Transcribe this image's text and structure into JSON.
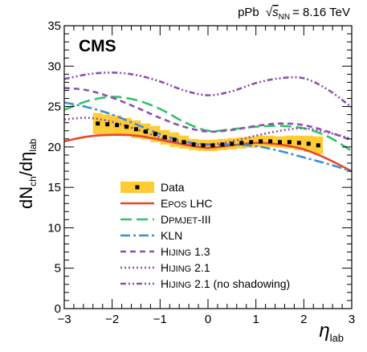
{
  "chart_data": {
    "type": "line",
    "energy_label": "pPb",
    "energy_value": "= 8.16 TeV",
    "experiment": "CMS",
    "xlabel": "η",
    "xlabel_sub": "lab",
    "ylabel": "dN",
    "ylabel_sub": "ch",
    "xlim": [
      -3,
      3
    ],
    "ylim": [
      0,
      35
    ],
    "x_ticks": [
      -3,
      -2,
      -1,
      0,
      1,
      2,
      3
    ],
    "y_ticks": [
      0,
      5,
      10,
      15,
      20,
      25,
      30,
      35
    ],
    "legend_position": "center-left",
    "data": {
      "name": "Data",
      "x": [
        -2.3,
        -2.1,
        -1.9,
        -1.7,
        -1.5,
        -1.3,
        -1.1,
        -0.9,
        -0.7,
        -0.5,
        -0.3,
        -0.1,
        0.1,
        0.3,
        0.5,
        0.7,
        0.9,
        1.1,
        1.3,
        1.5,
        1.7,
        1.9,
        2.1,
        2.3
      ],
      "y": [
        22.9,
        22.8,
        22.7,
        22.5,
        22.2,
        21.9,
        21.6,
        21.2,
        20.9,
        20.6,
        20.3,
        20.2,
        20.2,
        20.3,
        20.4,
        20.5,
        20.6,
        20.7,
        20.7,
        20.6,
        20.6,
        20.5,
        20.4,
        20.2
      ],
      "syst": [
        1.3,
        1.2,
        1.2,
        1.1,
        1.1,
        1.0,
        1.0,
        0.9,
        0.9,
        0.8,
        0.7,
        0.7,
        0.7,
        0.7,
        0.7,
        0.7,
        0.7,
        0.7,
        0.7,
        0.7,
        0.8,
        0.9,
        1.0,
        1.1
      ],
      "color": "#ffcc33"
    },
    "series": [
      {
        "name": "EPOS LHC",
        "name_main": "E",
        "name_sc": "POS",
        "name_rest": " LHC",
        "color": "#e8472b",
        "dash": "none",
        "x": [
          -3,
          -2.5,
          -2,
          -1.5,
          -1,
          -0.5,
          0,
          0.5,
          1,
          1.5,
          2,
          2.5,
          3
        ],
        "y": [
          20.7,
          21.3,
          21.5,
          21.4,
          20.9,
          20.3,
          19.9,
          20.2,
          20.5,
          20.3,
          19.7,
          18.5,
          17.0
        ]
      },
      {
        "name": "DPMJET-III",
        "name_main": "D",
        "name_sc": "PMJET",
        "name_rest": "-III",
        "color": "#33c36a",
        "dash": "14 6",
        "x": [
          -3,
          -2.5,
          -2,
          -1.5,
          -1,
          -0.5,
          0,
          0.5,
          1,
          1.5,
          2,
          2.5,
          3
        ],
        "y": [
          24.6,
          25.7,
          26.2,
          25.8,
          24.7,
          23.1,
          22.0,
          22.2,
          22.5,
          22.6,
          22.3,
          21.3,
          19.5
        ]
      },
      {
        "name": "KLN",
        "name_main": "KLN",
        "name_sc": "",
        "name_rest": "",
        "color": "#3c8fd6",
        "dash": "12 4 3 4",
        "x": [
          -3,
          -2.5,
          -2,
          -1.5,
          -1,
          -0.5,
          0,
          0.5,
          1,
          1.5,
          2,
          2.5,
          3
        ],
        "y": [
          25.5,
          24.9,
          24.0,
          22.8,
          21.6,
          20.7,
          20.3,
          20.3,
          20.1,
          19.5,
          18.7,
          17.9,
          17.0
        ]
      },
      {
        "name": "HIJING 1.3",
        "name_main": "H",
        "name_sc": "IJING",
        "name_rest": " 1.3",
        "color": "#8e4fb0",
        "dash": "7 5",
        "x": [
          -3,
          -2.5,
          -2,
          -1.5,
          -1,
          -0.5,
          0,
          0.5,
          1,
          1.5,
          2,
          2.5,
          3
        ],
        "y": [
          27.3,
          27.0,
          26.1,
          24.9,
          23.6,
          22.5,
          21.9,
          22.1,
          22.6,
          22.9,
          22.7,
          21.9,
          20.8
        ]
      },
      {
        "name": "HIJING 2.1",
        "name_main": "H",
        "name_sc": "IJING",
        "name_rest": " 2.1",
        "color": "#8e4fb0",
        "dash": "2 3",
        "x": [
          -3,
          -2.5,
          -2,
          -1.5,
          -1,
          -0.5,
          0,
          0.5,
          1,
          1.5,
          2,
          2.5,
          3
        ],
        "y": [
          23.4,
          23.6,
          23.1,
          22.2,
          21.2,
          20.5,
          20.3,
          20.7,
          21.4,
          22.0,
          22.3,
          21.8,
          21.0
        ]
      },
      {
        "name": "HIJING 2.1 (no shadowing)",
        "name_main": "H",
        "name_sc": "IJING",
        "name_rest": " 2.1 (no shadowing)",
        "color": "#8e4fb0",
        "dash": "7 3 2 3 2 3",
        "x": [
          -3,
          -2.5,
          -2,
          -1.5,
          -1,
          -0.5,
          0,
          0.5,
          1,
          1.5,
          2,
          2.5,
          3
        ],
        "y": [
          28.4,
          29.0,
          29.2,
          28.9,
          28.1,
          27.0,
          26.4,
          26.9,
          27.9,
          28.5,
          28.5,
          27.1,
          24.9
        ]
      }
    ]
  }
}
